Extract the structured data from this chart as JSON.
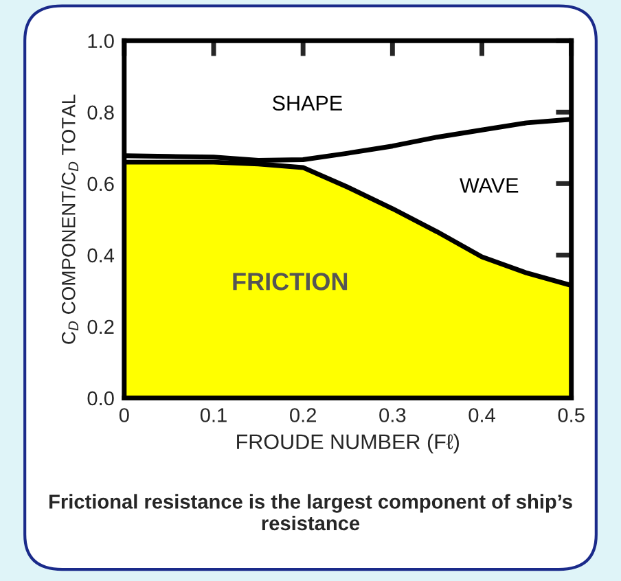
{
  "chart_data": {
    "type": "area",
    "xlabel": "FROUDE NUMBER (Fℓ)",
    "ylabel": "C$_{D}$ COMPONENT/C$_{D}$ TOTAL",
    "x": [
      0,
      0.05,
      0.1,
      0.15,
      0.2,
      0.25,
      0.3,
      0.35,
      0.4,
      0.45,
      0.5
    ],
    "series": [
      {
        "color": "#ffff00",
        "values": [
          0.66,
          0.66,
          0.66,
          0.655,
          0.645,
          0.59,
          0.53,
          0.465,
          0.395,
          0.35,
          0.315
        ]
      },
      {
        "type": "line",
        "color": "#000000",
        "values": [
          0.678,
          0.676,
          0.674,
          0.665,
          0.667,
          0.685,
          0.705,
          0.73,
          0.75,
          0.77,
          0.78
        ]
      }
    ],
    "xlim": [
      0,
      0.5
    ],
    "ylim": [
      0,
      1.0
    ],
    "xticks": [
      0,
      0.1,
      0.2,
      0.3,
      0.4,
      0.5
    ],
    "yticks": [
      {
        "value": 0,
        "label": "0.0"
      },
      0.2,
      0.4,
      0.6,
      0.8,
      {
        "value": 1,
        "label": "1.0"
      }
    ],
    "grid": false,
    "legend": false,
    "annotations": [
      "SHAPE",
      "WAVE",
      "FRICTION",
      "Frictional resistance is the largest component of ship’s resistance"
    ]
  }
}
